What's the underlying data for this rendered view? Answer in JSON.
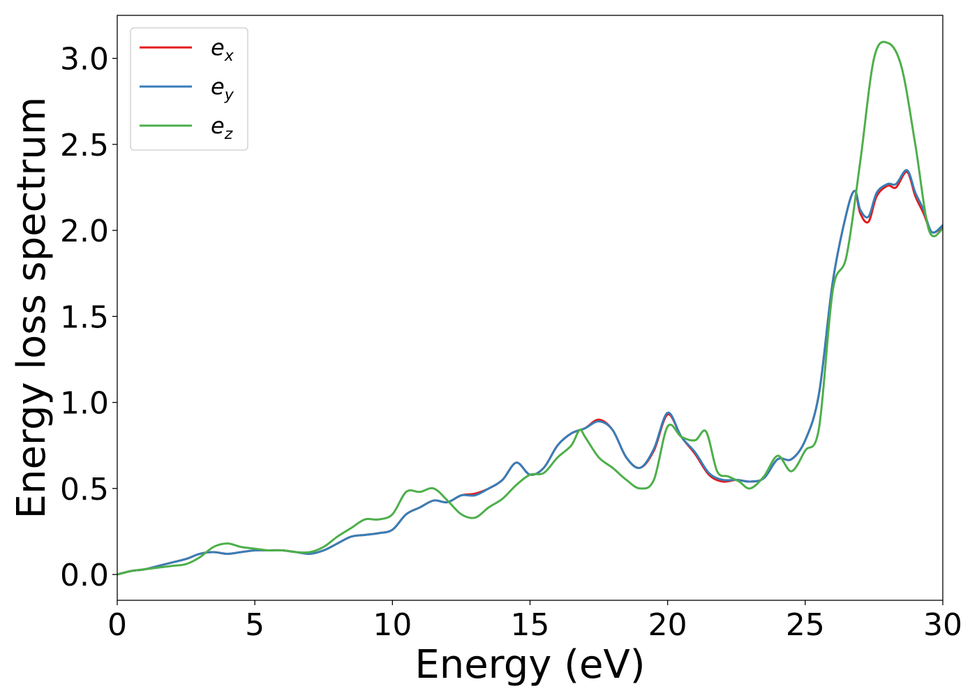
{
  "chart_data": {
    "type": "line",
    "xlabel": "Energy (eV)",
    "ylabel": "Energy loss spectrum",
    "xlim": [
      0,
      30
    ],
    "ylim": [
      -0.15,
      3.25
    ],
    "xticks": [
      0,
      5,
      10,
      15,
      20,
      25,
      30
    ],
    "xtick_labels": [
      "0",
      "5",
      "10",
      "15",
      "20",
      "25",
      "30"
    ],
    "yticks": [
      0.0,
      0.5,
      1.0,
      1.5,
      2.0,
      2.5,
      3.0
    ],
    "ytick_labels": [
      "0.0",
      "0.5",
      "1.0",
      "1.5",
      "2.0",
      "2.5",
      "3.0"
    ],
    "grid": false,
    "legend_position": "top-left",
    "series": [
      {
        "name": "e_x",
        "legend_base": "e",
        "legend_sub": "x",
        "color": "#e41a1c",
        "x": [
          0,
          0.5,
          1,
          1.5,
          2,
          2.5,
          3,
          3.5,
          4,
          4.5,
          5,
          5.5,
          6,
          6.5,
          7,
          7.5,
          8,
          8.5,
          9,
          9.5,
          10,
          10.5,
          11,
          11.5,
          12,
          12.5,
          13,
          13.5,
          14,
          14.5,
          15,
          15.5,
          16,
          16.5,
          17,
          17.5,
          18,
          18.5,
          19,
          19.5,
          20,
          20.5,
          21,
          21.5,
          22,
          22.5,
          23,
          23.5,
          24,
          24.5,
          25,
          25.5,
          26,
          26.5,
          26.8,
          27,
          27.3,
          27.6,
          28,
          28.3,
          28.7,
          29,
          29.3,
          29.6,
          30
        ],
        "y": [
          0.0,
          0.02,
          0.03,
          0.05,
          0.07,
          0.09,
          0.12,
          0.13,
          0.12,
          0.13,
          0.14,
          0.14,
          0.14,
          0.13,
          0.12,
          0.14,
          0.18,
          0.22,
          0.23,
          0.24,
          0.26,
          0.35,
          0.39,
          0.43,
          0.42,
          0.46,
          0.47,
          0.5,
          0.55,
          0.65,
          0.58,
          0.62,
          0.75,
          0.82,
          0.85,
          0.9,
          0.84,
          0.68,
          0.62,
          0.72,
          0.93,
          0.8,
          0.7,
          0.58,
          0.54,
          0.55,
          0.54,
          0.56,
          0.67,
          0.67,
          0.78,
          1.05,
          1.7,
          2.1,
          2.23,
          2.1,
          2.05,
          2.2,
          2.26,
          2.25,
          2.34,
          2.2,
          2.1,
          1.99,
          2.02
        ]
      },
      {
        "name": "e_y",
        "legend_base": "e",
        "legend_sub": "y",
        "color": "#377eb8",
        "x": [
          0,
          0.5,
          1,
          1.5,
          2,
          2.5,
          3,
          3.5,
          4,
          4.5,
          5,
          5.5,
          6,
          6.5,
          7,
          7.5,
          8,
          8.5,
          9,
          9.5,
          10,
          10.5,
          11,
          11.5,
          12,
          12.5,
          13,
          13.5,
          14,
          14.5,
          15,
          15.5,
          16,
          16.5,
          17,
          17.5,
          18,
          18.5,
          19,
          19.5,
          20,
          20.5,
          21,
          21.5,
          22,
          22.5,
          23,
          23.5,
          24,
          24.5,
          25,
          25.5,
          26,
          26.5,
          26.8,
          27,
          27.3,
          27.6,
          28,
          28.3,
          28.7,
          29,
          29.3,
          29.6,
          30
        ],
        "y": [
          0.0,
          0.02,
          0.03,
          0.05,
          0.07,
          0.09,
          0.12,
          0.13,
          0.12,
          0.13,
          0.14,
          0.14,
          0.14,
          0.13,
          0.12,
          0.14,
          0.18,
          0.22,
          0.23,
          0.24,
          0.26,
          0.35,
          0.39,
          0.43,
          0.42,
          0.46,
          0.46,
          0.5,
          0.55,
          0.65,
          0.58,
          0.62,
          0.75,
          0.82,
          0.85,
          0.89,
          0.84,
          0.68,
          0.62,
          0.73,
          0.94,
          0.8,
          0.71,
          0.59,
          0.55,
          0.55,
          0.54,
          0.56,
          0.67,
          0.67,
          0.78,
          1.05,
          1.7,
          2.1,
          2.23,
          2.12,
          2.08,
          2.22,
          2.27,
          2.27,
          2.35,
          2.22,
          2.12,
          1.99,
          2.03
        ]
      },
      {
        "name": "e_z",
        "legend_base": "e",
        "legend_sub": "z",
        "color": "#4daf4a",
        "x": [
          0,
          0.5,
          1,
          1.5,
          2,
          2.5,
          3,
          3.5,
          4,
          4.5,
          5,
          5.5,
          6,
          6.5,
          7,
          7.5,
          8,
          8.5,
          9,
          9.5,
          10,
          10.5,
          11,
          11.5,
          12,
          12.5,
          13,
          13.5,
          14,
          14.5,
          15,
          15.5,
          16,
          16.5,
          16.8,
          17,
          17.5,
          18,
          18.5,
          19,
          19.5,
          20,
          20.5,
          21,
          21.4,
          21.8,
          22.2,
          22.6,
          23,
          23.5,
          24,
          24.5,
          25,
          25.5,
          26,
          26.5,
          27,
          27.5,
          28,
          28.5,
          29,
          29.5,
          30
        ],
        "y": [
          0.0,
          0.02,
          0.03,
          0.04,
          0.05,
          0.06,
          0.1,
          0.16,
          0.18,
          0.16,
          0.15,
          0.14,
          0.14,
          0.13,
          0.13,
          0.16,
          0.22,
          0.27,
          0.32,
          0.32,
          0.35,
          0.48,
          0.48,
          0.5,
          0.43,
          0.35,
          0.33,
          0.39,
          0.44,
          0.52,
          0.58,
          0.59,
          0.68,
          0.75,
          0.84,
          0.8,
          0.68,
          0.62,
          0.55,
          0.5,
          0.55,
          0.86,
          0.8,
          0.78,
          0.83,
          0.6,
          0.57,
          0.54,
          0.5,
          0.57,
          0.69,
          0.6,
          0.72,
          0.85,
          1.65,
          1.85,
          2.4,
          3.0,
          3.09,
          2.95,
          2.5,
          2.0,
          2.01
        ]
      }
    ]
  }
}
